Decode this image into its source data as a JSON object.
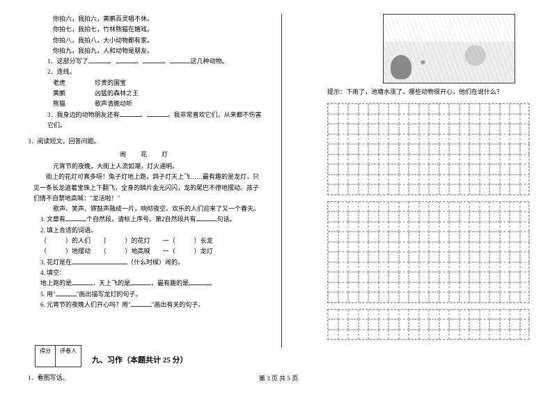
{
  "left": {
    "poem_lines": [
      "你拍六，我拍六，黄鹂百灵唱不休。",
      "你拍七，我拍七，竹林熊猫在嬉戏。",
      "你拍八，我拍八，大小动物都有家。",
      "你拍九，我拍九，人和动物是朋友。"
    ],
    "q1_pre": "1．这部分写了",
    "q1_post": "这几种动物。",
    "q2": "2．连线。",
    "match_rows": [
      {
        "left": "老虎",
        "right": "珍贵的国宝"
      },
      {
        "left": "黄鹂",
        "right": "凶猛的森林之王"
      },
      {
        "left": "熊猫",
        "right": "歌声清脆动听"
      }
    ],
    "q3_pre": "3．我身边的动物朋友还有",
    "q3_mid": "，我非常喜欢它们，从来都不伤害它们。",
    "reading_header": "3．阅读短文，回答问题。",
    "article_title": "闹　花　灯",
    "para1": "　　元宵节的夜晚，大街上人流如潮，灯火通明。",
    "para2": "　　街上的花灯可真多呀！兔子灯地上跑，鸽子灯天上飞……最有趣的是龙灯，只见一条长龙追着宝珠上下翻飞，全身的鳞片金光闪闪，龙的尾巴不停地摆动。孩子们情不自禁地高喊：\"龙活啦！\"",
    "para3": "　　歌声、笑声、锣鼓声融成一片，响彻夜空。欢乐的人们迎来了又一个春天。",
    "sub_q1_pre": "1. 文章有",
    "sub_q1_mid": "个自然段，请标上序号。第2自然段共有",
    "sub_q1_post": "句话。",
    "sub_q2": "2. 填上合适的词语。",
    "fill_row1": {
      "a": "）的人们",
      "b": "）的花灯",
      "c": "）长龙"
    },
    "fill_row2": {
      "a": "）地摆动",
      "b": "）地高喊",
      "c": "）龙灯"
    },
    "sub_q3_pre": "3. 花灯是在",
    "sub_q3_post": "（什么时候）闹的。",
    "sub_q4": "4. 填空：",
    "sub_q4_line_a": "地上跑的是",
    "sub_q4_line_b": "，天上飞的是",
    "sub_q4_line_c": "，最有趣的是",
    "sub_q5_pre": "5. 用\"",
    "sub_q5_post": "\"画出描写龙灯的句子。",
    "sub_q6_pre": "6. 元宵节的夜晚人们开心吗？用\"",
    "sub_q6_post": "\"画出有关的句子。",
    "score_labels": {
      "a": "得分",
      "b": "评卷人"
    },
    "section9": "九、习作（本题共计 25 分）",
    "writing_q": "1．看图写话。"
  },
  "right": {
    "hint": "提示：下雨了，池塘水涨了。哪些动物很开心，他们在说什么？",
    "grid": {
      "cols": 20,
      "block1_rows": 9,
      "block2_rows": 10,
      "block3_rows": 3
    }
  },
  "footer": "第 3 页 共 5 页",
  "colors": {
    "text": "#000000",
    "bg": "#ffffff",
    "grid_border": "#bbbbbb"
  }
}
